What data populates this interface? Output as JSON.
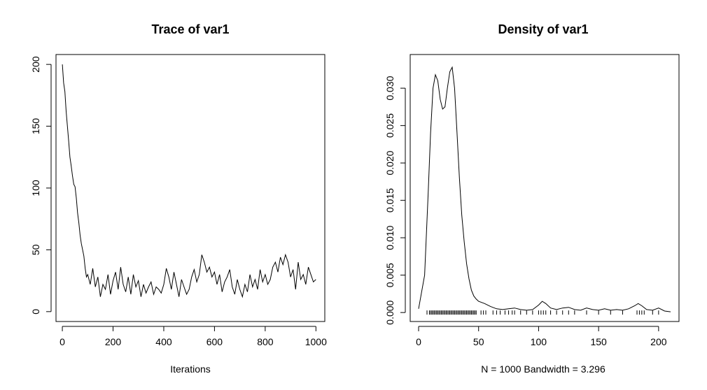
{
  "chart_data": [
    {
      "type": "line",
      "title": "Trace of var1",
      "xlabel": "Iterations",
      "ylabel": "",
      "xlim": [
        -25,
        1035
      ],
      "ylim": [
        -8,
        208
      ],
      "x_ticks": [
        "0",
        "200",
        "400",
        "600",
        "800",
        "1000"
      ],
      "y_ticks": [
        "0",
        "50",
        "100",
        "150",
        "200"
      ],
      "grid": false,
      "series": [
        {
          "x": [
            0,
            5,
            10,
            15,
            20,
            25,
            30,
            35,
            40,
            45,
            50,
            55,
            60,
            65,
            70,
            75,
            80,
            85,
            90,
            95,
            100,
            110,
            120,
            130,
            140,
            150,
            160,
            170,
            180,
            190,
            200,
            210,
            220,
            230,
            240,
            250,
            260,
            270,
            280,
            290,
            300,
            310,
            320,
            330,
            340,
            350,
            360,
            370,
            380,
            390,
            400,
            410,
            420,
            430,
            440,
            450,
            460,
            470,
            480,
            490,
            500,
            510,
            520,
            530,
            540,
            550,
            560,
            570,
            580,
            590,
            600,
            610,
            620,
            630,
            640,
            650,
            660,
            670,
            680,
            690,
            700,
            710,
            720,
            730,
            740,
            750,
            760,
            770,
            780,
            790,
            800,
            810,
            820,
            830,
            840,
            850,
            860,
            870,
            880,
            890,
            900,
            910,
            920,
            930,
            940,
            950,
            960,
            970,
            980,
            990,
            1000
          ],
          "values": [
            200,
            185,
            178,
            162,
            150,
            138,
            125,
            118,
            110,
            103,
            101,
            92,
            80,
            72,
            62,
            55,
            50,
            45,
            35,
            28,
            30,
            22,
            35,
            20,
            28,
            12,
            22,
            18,
            30,
            14,
            25,
            32,
            18,
            36,
            22,
            16,
            28,
            14,
            30,
            20,
            25,
            12,
            22,
            15,
            20,
            24,
            14,
            20,
            18,
            15,
            22,
            35,
            28,
            18,
            32,
            22,
            12,
            26,
            20,
            14,
            18,
            28,
            34,
            24,
            30,
            46,
            40,
            32,
            36,
            28,
            32,
            22,
            30,
            16,
            24,
            28,
            34,
            20,
            14,
            26,
            18,
            12,
            22,
            16,
            30,
            20,
            26,
            18,
            34,
            24,
            30,
            22,
            26,
            36,
            40,
            32,
            44,
            38,
            46,
            40,
            28,
            34,
            18,
            40,
            26,
            30,
            22,
            36,
            30,
            24,
            26
          ]
        }
      ]
    },
    {
      "type": "line",
      "title": "Density of var1",
      "xlabel": "N = 1000   Bandwidth = 3.296",
      "ylabel": "",
      "xlim": [
        -7,
        217
      ],
      "ylim": [
        -0.0012,
        0.0345
      ],
      "x_ticks": [
        "0",
        "50",
        "100",
        "150",
        "200"
      ],
      "y_ticks": [
        "0.000",
        "0.005",
        "0.010",
        "0.015",
        "0.020",
        "0.025",
        "0.030"
      ],
      "grid": false,
      "series": [
        {
          "x": [
            0,
            5,
            8,
            10,
            12,
            14,
            16,
            18,
            20,
            22,
            24,
            26,
            28,
            30,
            32,
            34,
            36,
            38,
            40,
            42,
            44,
            46,
            48,
            50,
            55,
            60,
            65,
            70,
            75,
            80,
            85,
            90,
            95,
            100,
            103,
            106,
            110,
            115,
            120,
            125,
            130,
            135,
            140,
            145,
            150,
            155,
            160,
            165,
            170,
            175,
            180,
            183,
            186,
            190,
            195,
            200,
            205,
            210
          ],
          "values": [
            0.0005,
            0.005,
            0.016,
            0.024,
            0.03,
            0.0318,
            0.031,
            0.0285,
            0.0272,
            0.0275,
            0.03,
            0.0322,
            0.0328,
            0.03,
            0.024,
            0.018,
            0.013,
            0.0095,
            0.0065,
            0.0045,
            0.003,
            0.0022,
            0.0018,
            0.0015,
            0.0012,
            0.0008,
            0.0005,
            0.0004,
            0.0005,
            0.0006,
            0.0004,
            0.0003,
            0.0004,
            0.001,
            0.0015,
            0.0012,
            0.0006,
            0.0004,
            0.0006,
            0.0007,
            0.0004,
            0.0003,
            0.0006,
            0.0004,
            0.0003,
            0.0005,
            0.0003,
            0.0004,
            0.0003,
            0.0005,
            0.0009,
            0.0012,
            0.0009,
            0.0004,
            0.0003,
            0.0006,
            0.0002,
            0.0001
          ]
        }
      ],
      "rug": [
        7,
        9,
        10,
        11,
        12,
        13,
        14,
        15,
        16,
        17,
        18,
        19,
        20,
        21,
        22,
        23,
        24,
        25,
        26,
        27,
        28,
        29,
        30,
        31,
        32,
        33,
        34,
        35,
        36,
        37,
        38,
        39,
        40,
        41,
        42,
        43,
        44,
        45,
        46,
        47,
        48,
        52,
        54,
        56,
        62,
        65,
        68,
        72,
        75,
        78,
        80,
        85,
        90,
        95,
        100,
        102,
        104,
        106,
        110,
        115,
        120,
        125,
        130,
        140,
        150,
        160,
        170,
        182,
        184,
        186,
        188,
        195,
        200
      ]
    }
  ]
}
